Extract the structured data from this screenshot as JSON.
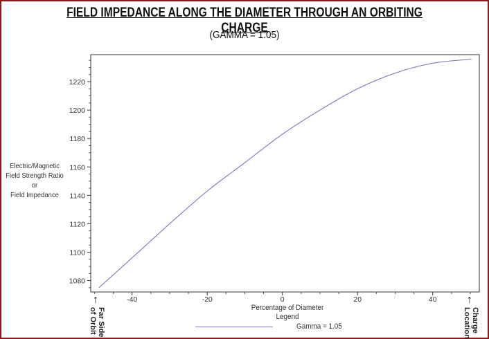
{
  "chart_data": {
    "type": "line",
    "title": "FIELD IMPEDANCE ALONG THE DIAMETER THROUGH AN ORBITING CHARGE",
    "subtitle": "(GAMMA = 1.05)",
    "xlabel": "Percentage of Diameter",
    "ylabel_lines": [
      "Electric/Magnetic",
      "Field Strength Ratio",
      "or",
      "Field Impedance"
    ],
    "xlim": [
      -51,
      52.4
    ],
    "ylim": [
      1072,
      1239
    ],
    "x_ticks": [
      -40,
      -20,
      0,
      20,
      40
    ],
    "y_ticks": [
      1080,
      1100,
      1120,
      1140,
      1160,
      1180,
      1200,
      1220
    ],
    "grid": false,
    "legend_title": "Legend",
    "legend_placement": "bottom",
    "series": [
      {
        "name": "Gamma = 1.05",
        "color": "#8080c0",
        "x": [
          -48.8,
          -40,
          -30,
          -20,
          -10,
          0,
          10,
          20,
          30,
          40,
          50.3
        ],
        "y": [
          1075,
          1096,
          1120,
          1143,
          1163,
          1183,
          1200,
          1215,
          1226,
          1233,
          1235.8
        ]
      }
    ],
    "annotations": {
      "left": "Far Side of Orbit",
      "right": "Charge Location"
    }
  },
  "frame_color": "#8b1a1a"
}
